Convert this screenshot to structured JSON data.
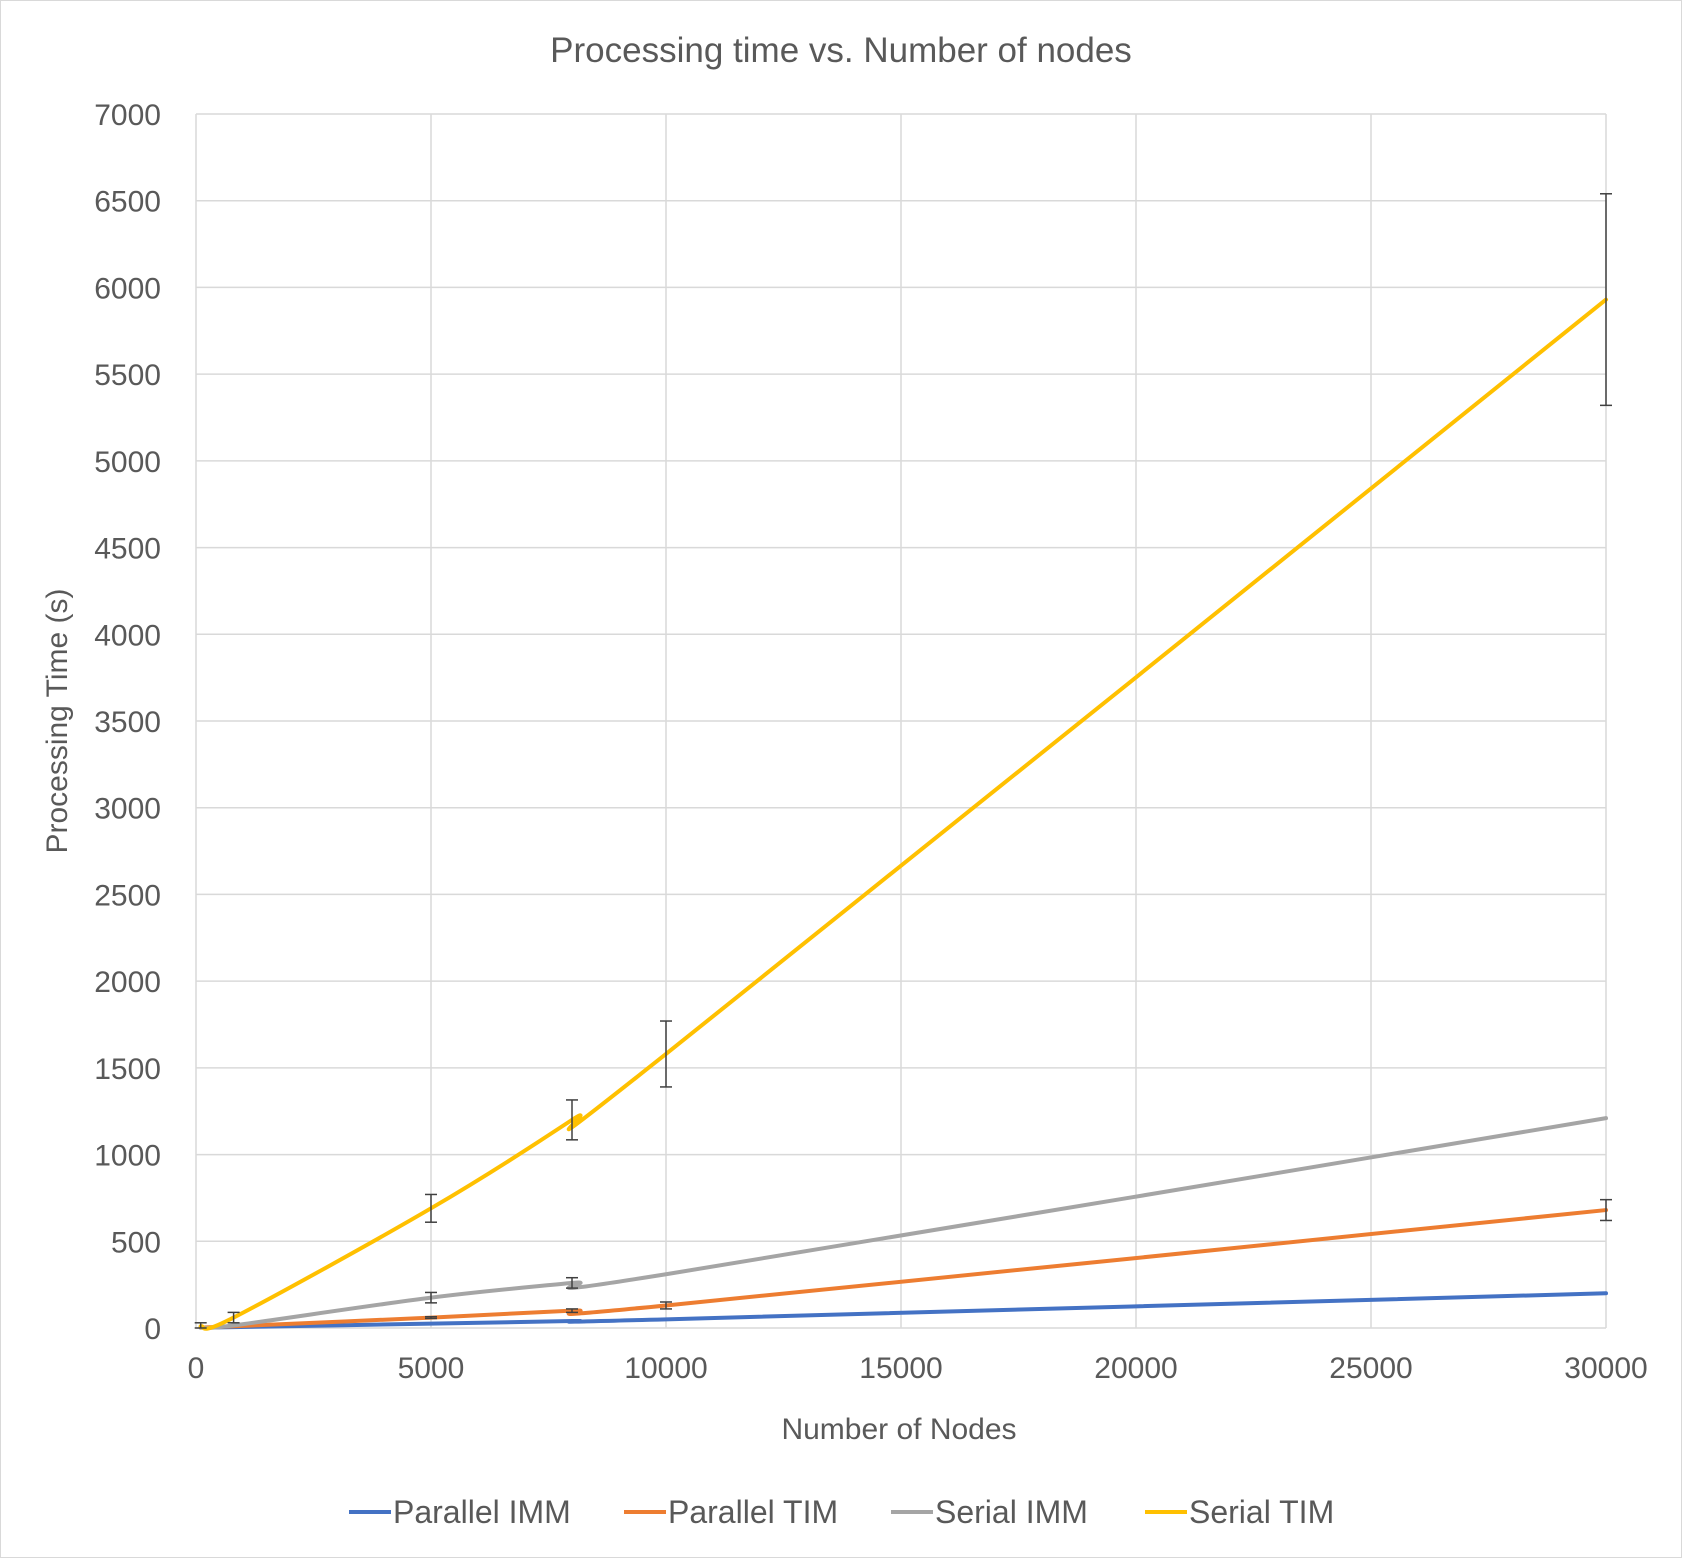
{
  "chart_data": {
    "type": "line",
    "title": "Processing time vs. Number of nodes",
    "xlabel": "Number of Nodes",
    "ylabel": "Processing Time (s)",
    "xlim": [
      0,
      30000
    ],
    "ylim": [
      0,
      7000
    ],
    "x_ticks": [
      0,
      5000,
      10000,
      15000,
      20000,
      25000,
      30000
    ],
    "y_ticks": [
      0,
      500,
      1000,
      1500,
      2000,
      2500,
      3000,
      3500,
      4000,
      4500,
      5000,
      5500,
      6000,
      6500,
      7000
    ],
    "grid": true,
    "legend_position": "bottom",
    "x": [
      100,
      800,
      5000,
      8000,
      10000,
      30000
    ],
    "series": [
      {
        "name": "Parallel IMM",
        "color": "#4472c4",
        "values": [
          2,
          5,
          25,
          40,
          50,
          200
        ],
        "errors": [
          0,
          0,
          0,
          0,
          0,
          0
        ]
      },
      {
        "name": "Parallel TIM",
        "color": "#ed7d31",
        "values": [
          3,
          10,
          60,
          100,
          130,
          680
        ],
        "errors": [
          0,
          0,
          5,
          10,
          20,
          60
        ]
      },
      {
        "name": "Serial IMM",
        "color": "#a5a5a5",
        "values": [
          5,
          15,
          175,
          260,
          310,
          1210
        ],
        "errors": [
          0,
          0,
          30,
          30,
          0,
          0
        ]
      },
      {
        "name": "Serial TIM",
        "color": "#ffc000",
        "values": [
          10,
          60,
          690,
          1200,
          1580,
          5930
        ],
        "errors": [
          20,
          30,
          80,
          115,
          190,
          610
        ]
      }
    ]
  }
}
